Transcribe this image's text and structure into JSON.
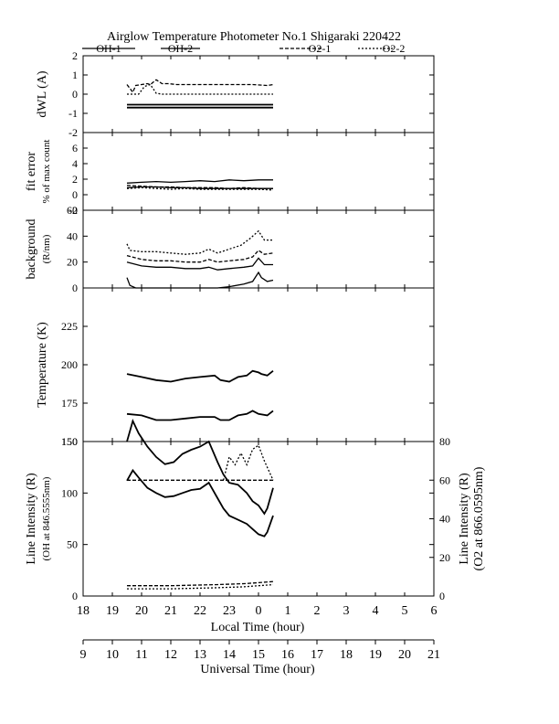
{
  "header": {
    "title": "Airglow Temperature Photometer No.1  Shigaraki   220422"
  },
  "legend": [
    {
      "name": "OH-1",
      "dash": "solid"
    },
    {
      "name": "OH-2",
      "dash": "solid"
    },
    {
      "name": "O2-1",
      "dash": "dashed"
    },
    {
      "name": "O2-2",
      "dash": "dotted"
    }
  ],
  "chart_data": [
    {
      "type": "line",
      "panel": "dwl",
      "ylabel": [
        "dWL (A)"
      ],
      "ylim": [
        -2,
        2
      ],
      "yticks": [
        -2,
        -1,
        0,
        1,
        2
      ],
      "series": [
        {
          "name": "OH-1",
          "x": [
            19.5,
            24.5
          ],
          "values": [
            -0.7,
            -0.7
          ]
        },
        {
          "name": "OH-2",
          "x": [
            19.5,
            24.5
          ],
          "values": [
            -0.55,
            -0.55
          ]
        },
        {
          "name": "O2-1",
          "x": [
            19.5,
            19.7,
            19.8,
            20.0,
            20.2,
            20.3,
            20.5,
            20.7,
            20.9,
            21.2,
            21.6,
            22.0,
            22.6,
            23.2,
            23.8,
            24.3,
            24.5
          ],
          "values": [
            0.5,
            0.1,
            0.45,
            0.5,
            0.55,
            0.5,
            0.75,
            0.55,
            0.55,
            0.5,
            0.5,
            0.5,
            0.5,
            0.5,
            0.5,
            0.45,
            0.5
          ]
        },
        {
          "name": "O2-2",
          "x": [
            19.5,
            19.9,
            20.1,
            20.3,
            20.5,
            20.7,
            24.5
          ],
          "values": [
            0.0,
            0.0,
            0.4,
            0.5,
            0.05,
            0.0,
            0.0
          ]
        }
      ]
    },
    {
      "type": "line",
      "panel": "fit",
      "ylabel": [
        "fit error",
        "% of max count"
      ],
      "ylim": [
        -2,
        8
      ],
      "yticks": [
        -2,
        0,
        2,
        4,
        6
      ],
      "series": [
        {
          "name": "OH-1",
          "x": [
            19.5,
            20.0,
            20.5,
            21.0,
            21.5,
            22.0,
            22.5,
            23.0,
            23.5,
            24.0,
            24.5
          ],
          "values": [
            1.5,
            1.6,
            1.7,
            1.6,
            1.7,
            1.8,
            1.7,
            1.9,
            1.8,
            1.9,
            1.9
          ]
        },
        {
          "name": "OH-2",
          "x": [
            19.5,
            20.0,
            20.5,
            21.0,
            21.5,
            22.0,
            22.5,
            23.0,
            23.5,
            24.0,
            24.5
          ],
          "values": [
            0.9,
            1.0,
            1.0,
            0.9,
            0.9,
            0.8,
            0.8,
            0.8,
            0.8,
            0.8,
            0.8
          ]
        },
        {
          "name": "O2-1",
          "x": [
            19.5,
            20.0,
            20.5,
            21.0,
            21.5,
            22.0,
            22.5,
            23.0,
            23.5,
            24.0,
            24.5
          ],
          "values": [
            1.2,
            1.1,
            1.0,
            1.0,
            0.9,
            0.9,
            0.9,
            0.8,
            0.9,
            0.8,
            0.8
          ]
        },
        {
          "name": "O2-2",
          "x": [
            19.5,
            20.0,
            20.5,
            21.0,
            21.5,
            22.0,
            22.5,
            23.0,
            23.5,
            24.0,
            24.5
          ],
          "values": [
            0.8,
            0.9,
            0.8,
            0.7,
            0.8,
            0.7,
            0.7,
            0.7,
            0.7,
            0.7,
            0.6
          ]
        }
      ]
    },
    {
      "type": "line",
      "panel": "background",
      "ylabel": [
        "background",
        "(R/nm)"
      ],
      "ylim": [
        0,
        60
      ],
      "yticks": [
        0,
        20,
        40,
        60
      ],
      "series": [
        {
          "name": "OH-1",
          "x": [
            19.5,
            19.6,
            19.8,
            20.2,
            21.0,
            22.0,
            22.6,
            23.0,
            23.5,
            23.8,
            24.0,
            24.1,
            24.3,
            24.5
          ],
          "values": [
            8,
            2,
            0,
            0,
            0,
            0,
            0,
            1,
            3,
            5,
            12,
            8,
            5,
            6
          ]
        },
        {
          "name": "OH-2",
          "x": [
            19.5,
            20.0,
            20.5,
            21.0,
            21.5,
            22.0,
            22.3,
            22.6,
            23.0,
            23.5,
            23.8,
            24.0,
            24.2,
            24.5
          ],
          "values": [
            20,
            17,
            16,
            16,
            15,
            15,
            16,
            14,
            15,
            16,
            17,
            23,
            18,
            18
          ]
        },
        {
          "name": "O2-1",
          "x": [
            19.5,
            20.0,
            20.5,
            21.0,
            21.5,
            22.0,
            22.3,
            22.6,
            23.0,
            23.5,
            23.8,
            24.0,
            24.2,
            24.5
          ],
          "values": [
            25,
            22,
            21,
            21,
            20,
            20,
            22,
            20,
            21,
            22,
            24,
            29,
            26,
            27
          ]
        },
        {
          "name": "O2-2",
          "x": [
            19.5,
            19.6,
            20.0,
            20.5,
            21.0,
            21.5,
            22.0,
            22.3,
            22.6,
            23.0,
            23.4,
            23.7,
            24.0,
            24.2,
            24.5
          ],
          "values": [
            34,
            29,
            28,
            28,
            27,
            26,
            27,
            30,
            27,
            30,
            33,
            38,
            44,
            37,
            37
          ]
        }
      ]
    },
    {
      "type": "line",
      "panel": "temperature",
      "ylabel": [
        "Temperature (K)"
      ],
      "ylim": [
        150,
        250
      ],
      "yticks": [
        150,
        175,
        200,
        225
      ],
      "series": [
        {
          "name": "OH-1",
          "x": [
            19.5,
            20.0,
            20.5,
            21.0,
            21.5,
            22.0,
            22.5,
            22.7,
            23.0,
            23.3,
            23.6,
            23.8,
            24.0,
            24.1,
            24.3,
            24.5
          ],
          "values": [
            194,
            192,
            190,
            189,
            191,
            192,
            193,
            190,
            189,
            192,
            193,
            196,
            195,
            194,
            193,
            196
          ]
        },
        {
          "name": "OH-2",
          "x": [
            19.5,
            20.0,
            20.5,
            21.0,
            21.5,
            22.0,
            22.5,
            22.7,
            23.0,
            23.3,
            23.6,
            23.8,
            24.0,
            24.3,
            24.5
          ],
          "values": [
            168,
            167,
            164,
            164,
            165,
            166,
            166,
            164,
            164,
            167,
            168,
            170,
            168,
            167,
            170
          ]
        }
      ]
    },
    {
      "type": "line",
      "panel": "intensity",
      "ylabel": [
        "Line Intensity (R)",
        "(OH at 846.5555nm)"
      ],
      "ylabel_right": [
        "Line Intensity (R)",
        "(O2 at 866.0595nm)"
      ],
      "ylim": [
        0,
        150
      ],
      "ylim_right": [
        0,
        80
      ],
      "yticks": [
        0,
        50,
        100,
        150
      ],
      "yticks_right": [
        0,
        20,
        40,
        60,
        80
      ],
      "series": [
        {
          "name": "OH-1",
          "axis": "left",
          "x": [
            19.5,
            19.7,
            19.9,
            20.2,
            20.5,
            20.8,
            21.1,
            21.4,
            21.7,
            22.0,
            22.3,
            22.6,
            22.8,
            23.0,
            23.3,
            23.6,
            23.8,
            24.0,
            24.2,
            24.3,
            24.5
          ],
          "values": [
            150,
            170,
            158,
            145,
            135,
            128,
            130,
            138,
            142,
            145,
            150,
            130,
            118,
            110,
            108,
            100,
            92,
            88,
            80,
            85,
            105
          ]
        },
        {
          "name": "OH-2",
          "axis": "left",
          "x": [
            19.5,
            19.7,
            19.9,
            20.2,
            20.5,
            20.8,
            21.1,
            21.4,
            21.7,
            22.0,
            22.3,
            22.6,
            22.8,
            23.0,
            23.3,
            23.6,
            23.8,
            24.0,
            24.2,
            24.3,
            24.5
          ],
          "values": [
            112,
            122,
            115,
            105,
            100,
            96,
            97,
            100,
            103,
            104,
            110,
            95,
            85,
            78,
            74,
            70,
            65,
            60,
            58,
            62,
            78
          ]
        },
        {
          "name": "O2-1",
          "axis": "right",
          "x": [
            19.5,
            20.5,
            21.5,
            22.5,
            23.5,
            24.5
          ],
          "values": [
            60,
            60,
            60,
            60,
            60,
            60
          ]
        },
        {
          "name": "O2-2",
          "axis": "right",
          "x": [
            22.8,
            23.0,
            23.2,
            23.4,
            23.6,
            23.8,
            24.0,
            24.2,
            24.5
          ],
          "values": [
            60,
            72,
            68,
            74,
            68,
            76,
            78,
            70,
            60
          ]
        },
        {
          "name": "O2-1 low",
          "axis": "left",
          "x": [
            19.5,
            21.0,
            22.5,
            23.5,
            24.0,
            24.5
          ],
          "values": [
            10,
            10,
            11,
            12,
            13,
            14
          ]
        },
        {
          "name": "O2-2 low",
          "axis": "left",
          "x": [
            19.5,
            21.0,
            22.5,
            23.5,
            24.0,
            24.5
          ],
          "values": [
            7,
            7,
            8,
            9,
            10,
            11
          ]
        }
      ]
    }
  ],
  "xaxis_local": {
    "label": "Local Time (hour)",
    "range": [
      18,
      30
    ],
    "tick_labels": [
      "18",
      "19",
      "20",
      "21",
      "22",
      "23",
      "0",
      "1",
      "2",
      "3",
      "4",
      "5",
      "6"
    ]
  },
  "xaxis_ut": {
    "label": "Universal Time (hour)",
    "range": [
      9,
      21
    ],
    "tick_labels": [
      "9",
      "10",
      "11",
      "12",
      "13",
      "14",
      "15",
      "16",
      "17",
      "18",
      "19",
      "20",
      "21"
    ]
  }
}
